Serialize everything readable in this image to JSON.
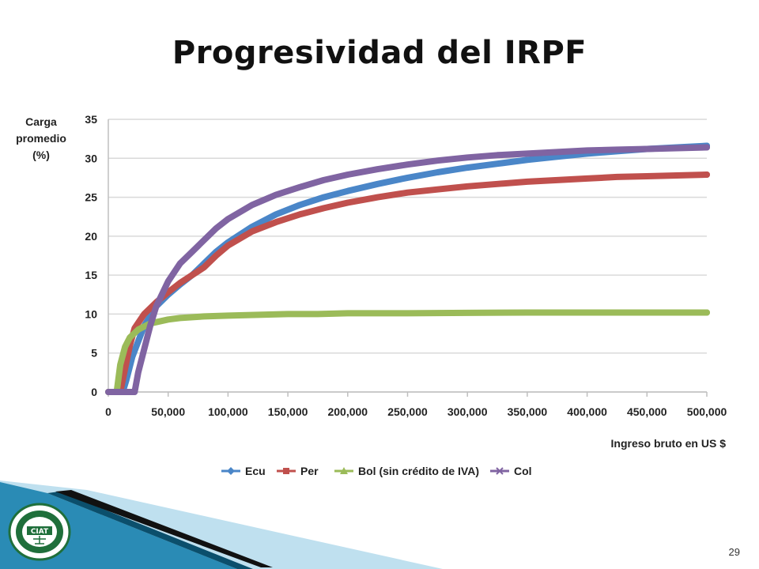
{
  "slide": {
    "title": "Progresividad del IRPF",
    "page_number": "29"
  },
  "colors": {
    "ecu": "#4a86c8",
    "per": "#c0504d",
    "bol": "#9bbb59",
    "col": "#8064a2",
    "grid": "#d9d9d9",
    "footer_dark": "#0b4f6c",
    "footer_mid": "#2a8bb5",
    "footer_light": "#bfe0ef"
  },
  "logo": {
    "icon": "institution-seal-icon",
    "text": "CIAT"
  },
  "chart_data": {
    "type": "line",
    "ylabel_lines": [
      "Carga",
      "promedio",
      "(%)"
    ],
    "xlabel": "Ingreso bruto en US $",
    "xlim": [
      0,
      500000
    ],
    "ylim": [
      0,
      35
    ],
    "x_ticks": [
      0,
      50000,
      100000,
      150000,
      200000,
      250000,
      300000,
      350000,
      400000,
      450000,
      500000
    ],
    "x_tick_labels": [
      "0",
      "50,000",
      "100,000",
      "150,000",
      "200,000",
      "250,000",
      "300,000",
      "350,000",
      "400,000",
      "450,000",
      "500,000"
    ],
    "y_ticks": [
      0,
      5,
      10,
      15,
      20,
      25,
      30,
      35
    ],
    "y_tick_labels": [
      "0",
      "5",
      "10",
      "15",
      "20",
      "25",
      "30",
      "35"
    ],
    "grid": "horizontal",
    "legend_position": "bottom",
    "series": [
      {
        "name": "Ecu",
        "color_key": "ecu",
        "marker": "diamond",
        "points": [
          [
            0,
            0
          ],
          [
            12000,
            0
          ],
          [
            15000,
            1.5
          ],
          [
            20000,
            4.5
          ],
          [
            30000,
            8.5
          ],
          [
            40000,
            11
          ],
          [
            50000,
            12.5
          ],
          [
            60000,
            13.8
          ],
          [
            70000,
            15
          ],
          [
            80000,
            16.5
          ],
          [
            90000,
            18
          ],
          [
            100000,
            19.2
          ],
          [
            120000,
            21.2
          ],
          [
            140000,
            22.8
          ],
          [
            160000,
            24
          ],
          [
            180000,
            25
          ],
          [
            200000,
            25.8
          ],
          [
            225000,
            26.7
          ],
          [
            250000,
            27.5
          ],
          [
            275000,
            28.2
          ],
          [
            300000,
            28.8
          ],
          [
            325000,
            29.3
          ],
          [
            350000,
            29.8
          ],
          [
            375000,
            30.2
          ],
          [
            400000,
            30.6
          ],
          [
            425000,
            30.9
          ],
          [
            450000,
            31.2
          ],
          [
            475000,
            31.4
          ],
          [
            500000,
            31.6
          ]
        ]
      },
      {
        "name": "Per",
        "color_key": "per",
        "marker": "square",
        "points": [
          [
            0,
            0
          ],
          [
            10000,
            0
          ],
          [
            14000,
            3
          ],
          [
            18000,
            6
          ],
          [
            22000,
            8.2
          ],
          [
            30000,
            10
          ],
          [
            40000,
            11.5
          ],
          [
            50000,
            12.8
          ],
          [
            60000,
            14
          ],
          [
            70000,
            15
          ],
          [
            80000,
            16
          ],
          [
            90000,
            17.5
          ],
          [
            100000,
            18.8
          ],
          [
            120000,
            20.6
          ],
          [
            140000,
            21.8
          ],
          [
            160000,
            22.8
          ],
          [
            180000,
            23.6
          ],
          [
            200000,
            24.3
          ],
          [
            225000,
            25
          ],
          [
            250000,
            25.6
          ],
          [
            275000,
            26
          ],
          [
            300000,
            26.4
          ],
          [
            325000,
            26.7
          ],
          [
            350000,
            27
          ],
          [
            375000,
            27.2
          ],
          [
            400000,
            27.4
          ],
          [
            425000,
            27.6
          ],
          [
            450000,
            27.7
          ],
          [
            475000,
            27.8
          ],
          [
            500000,
            27.9
          ]
        ]
      },
      {
        "name": "Bol (sin crédito de IVA)",
        "color_key": "bol",
        "marker": "triangle",
        "points": [
          [
            0,
            0
          ],
          [
            7000,
            0
          ],
          [
            10000,
            3.5
          ],
          [
            14000,
            5.8
          ],
          [
            18000,
            7
          ],
          [
            25000,
            8
          ],
          [
            35000,
            8.8
          ],
          [
            50000,
            9.3
          ],
          [
            60000,
            9.5
          ],
          [
            80000,
            9.7
          ],
          [
            100000,
            9.8
          ],
          [
            125000,
            9.9
          ],
          [
            150000,
            10
          ],
          [
            175000,
            10
          ],
          [
            200000,
            10.1
          ],
          [
            250000,
            10.1
          ],
          [
            300000,
            10.15
          ],
          [
            350000,
            10.2
          ],
          [
            400000,
            10.2
          ],
          [
            450000,
            10.2
          ],
          [
            500000,
            10.2
          ]
        ]
      },
      {
        "name": "Col",
        "color_key": "col",
        "marker": "x",
        "points": [
          [
            0,
            0
          ],
          [
            22000,
            0
          ],
          [
            25000,
            2.5
          ],
          [
            30000,
            5.5
          ],
          [
            35000,
            8.5
          ],
          [
            40000,
            11
          ],
          [
            50000,
            14.2
          ],
          [
            60000,
            16.5
          ],
          [
            70000,
            18
          ],
          [
            80000,
            19.5
          ],
          [
            90000,
            21
          ],
          [
            100000,
            22.2
          ],
          [
            120000,
            24
          ],
          [
            140000,
            25.3
          ],
          [
            160000,
            26.3
          ],
          [
            180000,
            27.2
          ],
          [
            200000,
            27.9
          ],
          [
            225000,
            28.6
          ],
          [
            250000,
            29.2
          ],
          [
            275000,
            29.7
          ],
          [
            300000,
            30.1
          ],
          [
            325000,
            30.4
          ],
          [
            350000,
            30.6
          ],
          [
            375000,
            30.8
          ],
          [
            400000,
            31
          ],
          [
            425000,
            31.1
          ],
          [
            450000,
            31.2
          ],
          [
            475000,
            31.3
          ],
          [
            500000,
            31.4
          ]
        ]
      }
    ]
  }
}
